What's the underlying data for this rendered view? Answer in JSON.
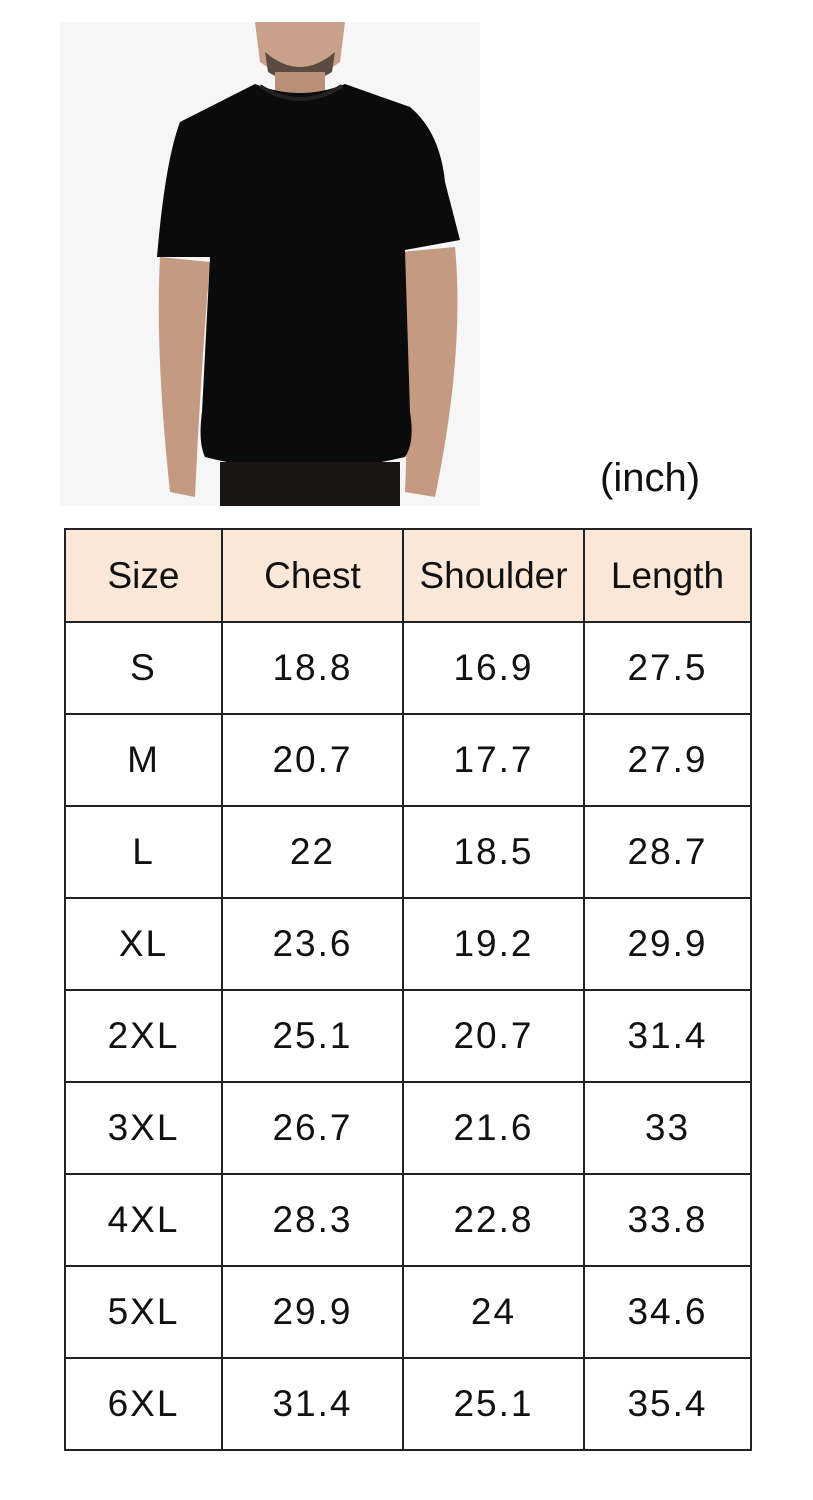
{
  "unit_label": "(inch)",
  "table": {
    "headers": [
      "Size",
      "Chest",
      "Shoulder",
      "Length"
    ],
    "rows": [
      [
        "S",
        "18.8",
        "16.9",
        "27.5"
      ],
      [
        "M",
        "20.7",
        "17.7",
        "27.9"
      ],
      [
        "L",
        "22",
        "18.5",
        "28.7"
      ],
      [
        "XL",
        "23.6",
        "19.2",
        "29.9"
      ],
      [
        "2XL",
        "25.1",
        "20.7",
        "31.4"
      ],
      [
        "3XL",
        "26.7",
        "21.6",
        "33"
      ],
      [
        "4XL",
        "28.3",
        "22.8",
        "33.8"
      ],
      [
        "5XL",
        "29.9",
        "24",
        "34.6"
      ],
      [
        "6XL",
        "31.4",
        "25.1",
        "35.4"
      ]
    ]
  },
  "colors": {
    "header_bg": "#fce8d8",
    "shirt": "#0b0b0b"
  }
}
